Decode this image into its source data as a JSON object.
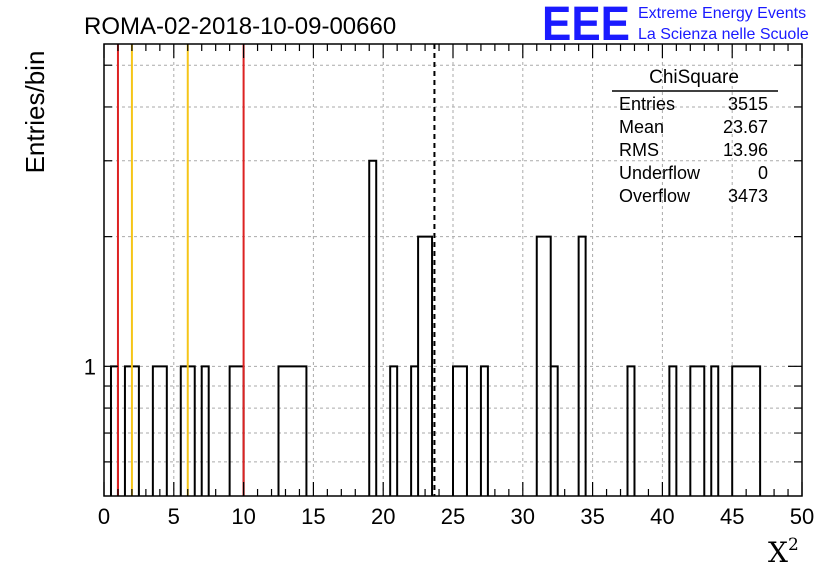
{
  "title": "ROMA-02-2018-10-09-00660",
  "logo": {
    "text": "EEE",
    "line1": "Extreme Energy Events",
    "line2": "La Scienza nelle Scuole",
    "color": "#1a1aff"
  },
  "stats": {
    "title": "ChiSquare",
    "rows": [
      {
        "label": "Entries",
        "value": "3515"
      },
      {
        "label": "Mean",
        "value": "23.67"
      },
      {
        "label": "RMS",
        "value": "13.96"
      },
      {
        "label": "Underflow",
        "value": "0"
      },
      {
        "label": "Overflow",
        "value": "3473"
      }
    ]
  },
  "chart_data": {
    "type": "histogram",
    "title": "ROMA-02-2018-10-09-00660",
    "xlabel": "X",
    "xlabel_sup": "2",
    "ylabel": "Entries/bin",
    "xlim": [
      0,
      50
    ],
    "ylim_log": [
      0.5,
      5.6
    ],
    "y_scale": "log",
    "grid": true,
    "x_ticks": [
      0,
      5,
      10,
      15,
      20,
      25,
      30,
      35,
      40,
      45,
      50
    ],
    "y_tick_labels": [
      {
        "value": 1,
        "label": "1"
      }
    ],
    "bin_width": 0.5,
    "bins": [
      {
        "x": [
          0.5,
          1.0
        ],
        "count": 1
      },
      {
        "x": [
          1.5,
          2.5
        ],
        "count": 1
      },
      {
        "x": [
          3.5,
          4.5
        ],
        "count": 1
      },
      {
        "x": [
          5.5,
          6.5
        ],
        "count": 1
      },
      {
        "x": [
          7.0,
          7.5
        ],
        "count": 1
      },
      {
        "x": [
          9.0,
          10.0
        ],
        "count": 1
      },
      {
        "x": [
          12.5,
          14.5
        ],
        "count": 1
      },
      {
        "x": [
          19.0,
          19.5
        ],
        "count": 3
      },
      {
        "x": [
          20.5,
          21.0
        ],
        "count": 1
      },
      {
        "x": [
          22.0,
          22.5
        ],
        "count": 1
      },
      {
        "x": [
          22.5,
          23.5
        ],
        "count": 2
      },
      {
        "x": [
          25.0,
          26.0
        ],
        "count": 1
      },
      {
        "x": [
          27.0,
          27.5
        ],
        "count": 1
      },
      {
        "x": [
          31.0,
          32.0
        ],
        "count": 2
      },
      {
        "x": [
          32.0,
          32.5
        ],
        "count": 1
      },
      {
        "x": [
          34.0,
          34.5
        ],
        "count": 2
      },
      {
        "x": [
          37.5,
          38.0
        ],
        "count": 1
      },
      {
        "x": [
          40.5,
          41.0
        ],
        "count": 1
      },
      {
        "x": [
          42.0,
          43.0
        ],
        "count": 1
      },
      {
        "x": [
          43.5,
          44.0
        ],
        "count": 1
      },
      {
        "x": [
          45.0,
          47.0
        ],
        "count": 1
      }
    ],
    "vertical_lines": [
      {
        "x": 1.0,
        "color": "#dd2222",
        "style": "solid"
      },
      {
        "x": 10.0,
        "color": "#dd2222",
        "style": "solid"
      },
      {
        "x": 2.0,
        "color": "#f5c518",
        "style": "solid"
      },
      {
        "x": 6.0,
        "color": "#f5c518",
        "style": "solid"
      },
      {
        "x": 23.67,
        "color": "#000000",
        "style": "dashed"
      }
    ]
  }
}
